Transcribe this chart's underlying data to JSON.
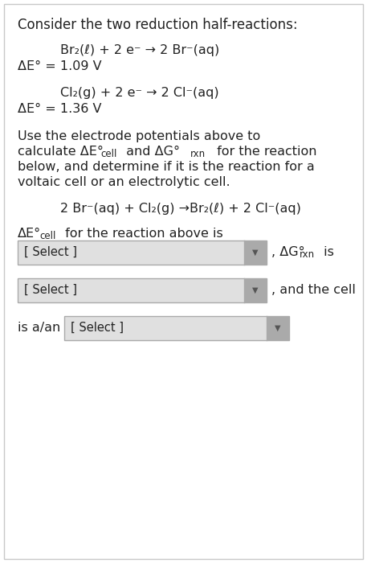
{
  "bg_color": "#ffffff",
  "border_color": "#c8c8c8",
  "text_color": "#222222",
  "title": "Consider the two reduction half-reactions:",
  "reaction1_line1": "Br₂(ℓ) + 2 e⁻ → 2 Br⁻(aq)",
  "reaction1_line2": "ΔE° = 1.09 V",
  "reaction2_line1": "Cl₂(g) + 2 e⁻ → 2 Cl⁻(aq)",
  "reaction2_line2": "ΔE° = 1.36 V",
  "para_line1": "Use the electrode potentials above to",
  "para_line2": "calculate ΔE°",
  "para_line2b": "cell",
  "para_line2c": " and ΔG°",
  "para_line2d": "rxn",
  "para_line2e": " for the reaction",
  "para_line3": "below, and determine if it is the reaction for a",
  "para_line4": "voltaic cell or an electrolytic cell.",
  "net_reaction": "2 Br⁻(aq) + Cl₂(g) →Br₂(ℓ) + 2 Cl⁻(aq)",
  "label_ae_prefix": "ΔE°",
  "label_ae_sub": "cell",
  "label_ae_suffix": " for the reaction above is",
  "select_label": "[ Select ]",
  "dg_prefix": ", ΔG°",
  "dg_sub": "rxn",
  "dg_suffix": " is",
  "and_cell": ", and the cell",
  "is_an": "is a/an",
  "dropdown_bg": "#e0e0e0",
  "dropdown_border": "#aaaaaa",
  "arrow_bg": "#aaaaaa",
  "arrow_char": "▼",
  "figw": 4.57,
  "figh": 7.0,
  "dpi": 100
}
